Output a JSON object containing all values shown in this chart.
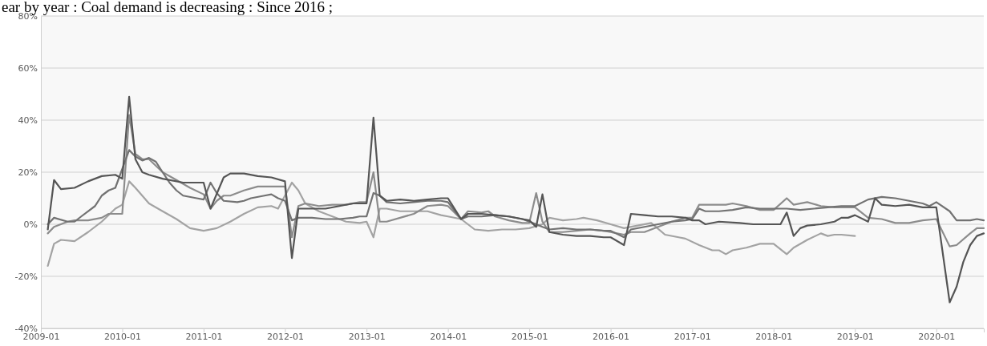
{
  "chart_data": {
    "type": "line",
    "title": "ear by year : Coal demand is decreasing : Since 2016 ;",
    "xlim": [
      "2009-01",
      "2020-08"
    ],
    "xticks": [
      "2009-01",
      "2010-01",
      "2011-01",
      "2012-01",
      "2013-01",
      "2014-01",
      "2015-01",
      "2016-01",
      "2017-01",
      "2018-01",
      "2019-01",
      "2020-01"
    ],
    "ylim": [
      -40,
      80
    ],
    "yticks": [
      {
        "value": -40,
        "label": "-40%"
      },
      {
        "value": -20,
        "label": "-20%"
      },
      {
        "value": 0,
        "label": "0%"
      },
      {
        "value": 20,
        "label": "20%"
      },
      {
        "value": 40,
        "label": "40%"
      },
      {
        "value": 60,
        "label": "60%"
      },
      {
        "value": 80,
        "label": "80%"
      }
    ],
    "grid": "y",
    "marker": "none",
    "line_style": "solid",
    "series": [
      {
        "color": "#a3a3a3",
        "x": [
          "2009-02",
          "2009-03",
          "2009-04",
          "2009-06",
          "2009-08",
          "2009-10",
          "2009-12",
          "2010-01",
          "2010-02",
          "2010-03",
          "2010-05",
          "2010-07",
          "2010-09",
          "2010-11",
          "2011-01",
          "2011-03",
          "2011-05",
          "2011-07",
          "2011-09",
          "2011-11",
          "2011-12",
          "2012-02",
          "2012-03",
          "2012-04",
          "2012-06",
          "2012-08",
          "2012-10",
          "2012-12",
          "2013-01",
          "2013-02",
          "2013-03",
          "2013-04",
          "2013-06",
          "2013-08",
          "2013-10",
          "2013-12",
          "2014-01",
          "2014-03",
          "2014-05",
          "2014-07",
          "2014-09",
          "2014-11",
          "2015-01",
          "2015-03",
          "2015-04",
          "2015-06",
          "2015-08",
          "2015-09",
          "2015-11",
          "2016-01",
          "2016-03",
          "2016-05",
          "2016-07",
          "2016-09",
          "2016-11",
          "2016-12",
          "2017-02",
          "2017-04",
          "2017-05",
          "2017-06",
          "2017-07",
          "2017-09",
          "2017-11",
          "2018-01",
          "2018-03",
          "2018-04",
          "2018-06",
          "2018-08",
          "2018-09",
          "2018-10",
          "2018-11",
          "2019-01"
        ],
        "values": [
          -16,
          -7.5,
          -6,
          -6.5,
          -3,
          1,
          6,
          7.5,
          16.5,
          14,
          8,
          5,
          2,
          -1.5,
          -2.5,
          -1.5,
          1,
          4,
          6.5,
          7,
          6,
          16,
          13,
          8,
          5,
          3,
          1,
          0.5,
          1,
          -5,
          6,
          6,
          5,
          5,
          5,
          3.5,
          3,
          2,
          -2,
          -2.5,
          -2,
          -2,
          -1.5,
          0,
          2.5,
          1.5,
          2,
          2.5,
          1.5,
          0,
          -1.5,
          -0.5,
          0.5,
          -4,
          -5,
          -5.5,
          -8,
          -10,
          -10,
          -11.5,
          -10,
          -9,
          -7.5,
          -7.5,
          -11.5,
          -9,
          -6,
          -3.5,
          -4.5,
          -4,
          -4,
          -4.5
        ]
      },
      {
        "color": "#8c8c8c",
        "x": [
          "2009-02",
          "2009-03",
          "2009-05",
          "2009-06",
          "2009-08",
          "2009-10",
          "2009-11",
          "2010-01",
          "2010-02",
          "2010-03",
          "2010-04",
          "2010-05",
          "2010-07",
          "2010-09",
          "2010-11",
          "2011-01",
          "2011-02",
          "2011-03",
          "2011-04",
          "2011-05",
          "2011-07",
          "2011-09",
          "2011-11",
          "2012-01",
          "2012-02",
          "2012-03",
          "2012-04",
          "2012-06",
          "2012-08",
          "2012-10",
          "2012-12",
          "2013-01",
          "2013-02",
          "2013-03",
          "2013-04",
          "2013-06",
          "2013-08",
          "2013-10",
          "2013-12",
          "2014-01",
          "2014-03",
          "2014-04",
          "2014-06",
          "2014-07",
          "2014-08",
          "2014-10",
          "2014-12",
          "2015-01",
          "2015-02",
          "2015-03",
          "2015-04",
          "2015-06",
          "2015-08",
          "2015-10",
          "2015-12",
          "2016-01",
          "2016-03",
          "2016-04",
          "2016-06",
          "2016-08",
          "2016-10",
          "2016-12",
          "2017-01",
          "2017-02",
          "2017-04",
          "2017-06",
          "2017-07",
          "2017-09",
          "2017-11",
          "2018-01",
          "2018-03",
          "2018-04",
          "2018-06",
          "2018-08",
          "2018-10",
          "2018-12",
          "2019-01",
          "2019-03",
          "2019-05",
          "2019-07",
          "2019-09",
          "2019-11",
          "2020-01",
          "2020-03",
          "2020-04",
          "2020-06",
          "2020-07",
          "2020-08"
        ],
        "values": [
          -3.5,
          -1,
          1,
          1.5,
          1.5,
          2.5,
          4,
          4,
          42,
          27,
          25,
          25,
          20,
          17,
          14,
          11.5,
          6,
          9,
          11,
          11,
          13,
          14.5,
          14.5,
          14.5,
          -5,
          7,
          8,
          7,
          7.5,
          7.5,
          8.5,
          8.5,
          20,
          1,
          1,
          2.5,
          4,
          7,
          7.5,
          7,
          2,
          5,
          4.5,
          5,
          3,
          1.5,
          0.5,
          0.5,
          12,
          1,
          -3,
          -3,
          -2.5,
          -2,
          -2.5,
          -3,
          -4,
          -3,
          -3,
          -1,
          1,
          2.5,
          2.5,
          7.5,
          7.5,
          7.5,
          8,
          7,
          5.5,
          5.5,
          10,
          7.5,
          8.5,
          7,
          6.5,
          6.5,
          6.5,
          2.5,
          2,
          0.5,
          0.5,
          1.5,
          2,
          -8.5,
          -8,
          -3.5,
          -1.5,
          -1.5
        ]
      },
      {
        "color": "#727272",
        "x": [
          "2009-02",
          "2009-03",
          "2009-05",
          "2009-06",
          "2009-07",
          "2009-09",
          "2009-10",
          "2009-11",
          "2009-12",
          "2010-02",
          "2010-03",
          "2010-04",
          "2010-05",
          "2010-06",
          "2010-07",
          "2010-08",
          "2010-09",
          "2010-10",
          "2010-12",
          "2011-01",
          "2011-02",
          "2011-03",
          "2011-04",
          "2011-06",
          "2011-07",
          "2011-08",
          "2011-10",
          "2011-11",
          "2011-12",
          "2012-01",
          "2012-02",
          "2012-03",
          "2012-05",
          "2012-07",
          "2012-09",
          "2012-11",
          "2012-12",
          "2013-01",
          "2013-02",
          "2013-03",
          "2013-04",
          "2013-06",
          "2013-08",
          "2013-10",
          "2013-12",
          "2014-01",
          "2014-03",
          "2014-04",
          "2014-06",
          "2014-08",
          "2014-10",
          "2014-12",
          "2015-01",
          "2015-02",
          "2015-03",
          "2015-04",
          "2015-06",
          "2015-08",
          "2015-10",
          "2015-12",
          "2016-01",
          "2016-03",
          "2016-04",
          "2016-06",
          "2016-08",
          "2016-10",
          "2016-12",
          "2017-01",
          "2017-02",
          "2017-03",
          "2017-05",
          "2017-07",
          "2017-09",
          "2017-11",
          "2018-01",
          "2018-03",
          "2018-05",
          "2018-07",
          "2018-09",
          "2018-11",
          "2019-01",
          "2019-03",
          "2019-05",
          "2019-07",
          "2019-09",
          "2019-11",
          "2019-12",
          "2020-01",
          "2020-03",
          "2020-04",
          "2020-06",
          "2020-07",
          "2020-08"
        ],
        "values": [
          0,
          2.5,
          1,
          1,
          3,
          7,
          11,
          13,
          14,
          28.5,
          26,
          24.5,
          25.5,
          24,
          20,
          16,
          13,
          11,
          10,
          9.5,
          16,
          12,
          9,
          8.5,
          9,
          10,
          11,
          11.5,
          10,
          9,
          1.5,
          2.5,
          2.5,
          2,
          2,
          2.5,
          3,
          3,
          12,
          11,
          8.5,
          8,
          8.5,
          9,
          9,
          8.5,
          2,
          3,
          3,
          3.5,
          3,
          2,
          1,
          0,
          -1,
          -2,
          -1.5,
          -2,
          -2,
          -2.5,
          -2.5,
          -5,
          -2,
          -1,
          0,
          1,
          1.5,
          2,
          6,
          5,
          5,
          5.5,
          6.5,
          6,
          6,
          6,
          5.5,
          6,
          6.5,
          7,
          7,
          9.5,
          10.5,
          10,
          9,
          8,
          7,
          8.5,
          5,
          1.5,
          1.5,
          2,
          1.5
        ]
      },
      {
        "color": "#555555",
        "x": [
          "2009-02",
          "2009-03",
          "2009-04",
          "2009-06",
          "2009-08",
          "2009-10",
          "2009-12",
          "2010-01",
          "2010-02",
          "2010-03",
          "2010-04",
          "2010-05",
          "2010-07",
          "2010-10",
          "2010-12",
          "2011-01",
          "2011-02",
          "2011-04",
          "2011-05",
          "2011-07",
          "2011-09",
          "2011-11",
          "2012-01",
          "2012-02",
          "2012-03",
          "2012-05",
          "2012-07",
          "2012-09",
          "2012-11",
          "2012-12",
          "2013-01",
          "2013-02",
          "2013-03",
          "2013-04",
          "2013-06",
          "2013-08",
          "2013-10",
          "2013-12",
          "2014-01",
          "2014-03",
          "2014-04",
          "2014-06",
          "2014-08",
          "2014-10",
          "2014-12",
          "2015-01",
          "2015-02",
          "2015-03",
          "2015-04",
          "2015-06",
          "2015-08",
          "2015-10",
          "2015-12",
          "2016-01",
          "2016-03",
          "2016-04",
          "2016-06",
          "2016-08",
          "2016-10",
          "2016-12",
          "2017-01",
          "2017-02",
          "2017-03",
          "2017-05",
          "2017-08",
          "2017-10",
          "2017-12",
          "2018-02",
          "2018-03",
          "2018-04",
          "2018-05",
          "2018-06",
          "2018-08",
          "2018-10",
          "2018-11",
          "2018-12",
          "2019-01",
          "2019-03",
          "2019-04",
          "2019-05",
          "2019-07",
          "2019-09",
          "2019-11",
          "2019-12",
          "2020-01",
          "2020-03",
          "2020-04",
          "2020-05",
          "2020-06",
          "2020-07",
          "2020-08"
        ],
        "values": [
          -2,
          17,
          13.5,
          14,
          16.5,
          18.5,
          19,
          17.5,
          49,
          25,
          20,
          19,
          17.5,
          16,
          16,
          16,
          6,
          18,
          19.5,
          19.5,
          18.5,
          18,
          16.5,
          -13,
          6,
          6,
          6,
          7,
          8,
          8,
          8,
          41,
          11,
          9,
          9.5,
          9,
          9.5,
          10,
          10,
          2,
          4,
          4,
          3.5,
          3,
          2,
          1.5,
          -1,
          11.5,
          -3,
          -4,
          -4.5,
          -4.5,
          -5,
          -5,
          -8,
          4,
          3.5,
          3,
          3,
          2.5,
          1.5,
          1.5,
          0,
          1,
          0.5,
          0,
          0,
          0,
          4.5,
          -4.5,
          -1.5,
          -0.5,
          0,
          1,
          2.5,
          2.5,
          3.5,
          1,
          10,
          7.5,
          7,
          7.5,
          6.5,
          6.5,
          6.5,
          -30,
          -24,
          -14.5,
          -8,
          -4.5,
          -3.5
        ]
      }
    ]
  }
}
